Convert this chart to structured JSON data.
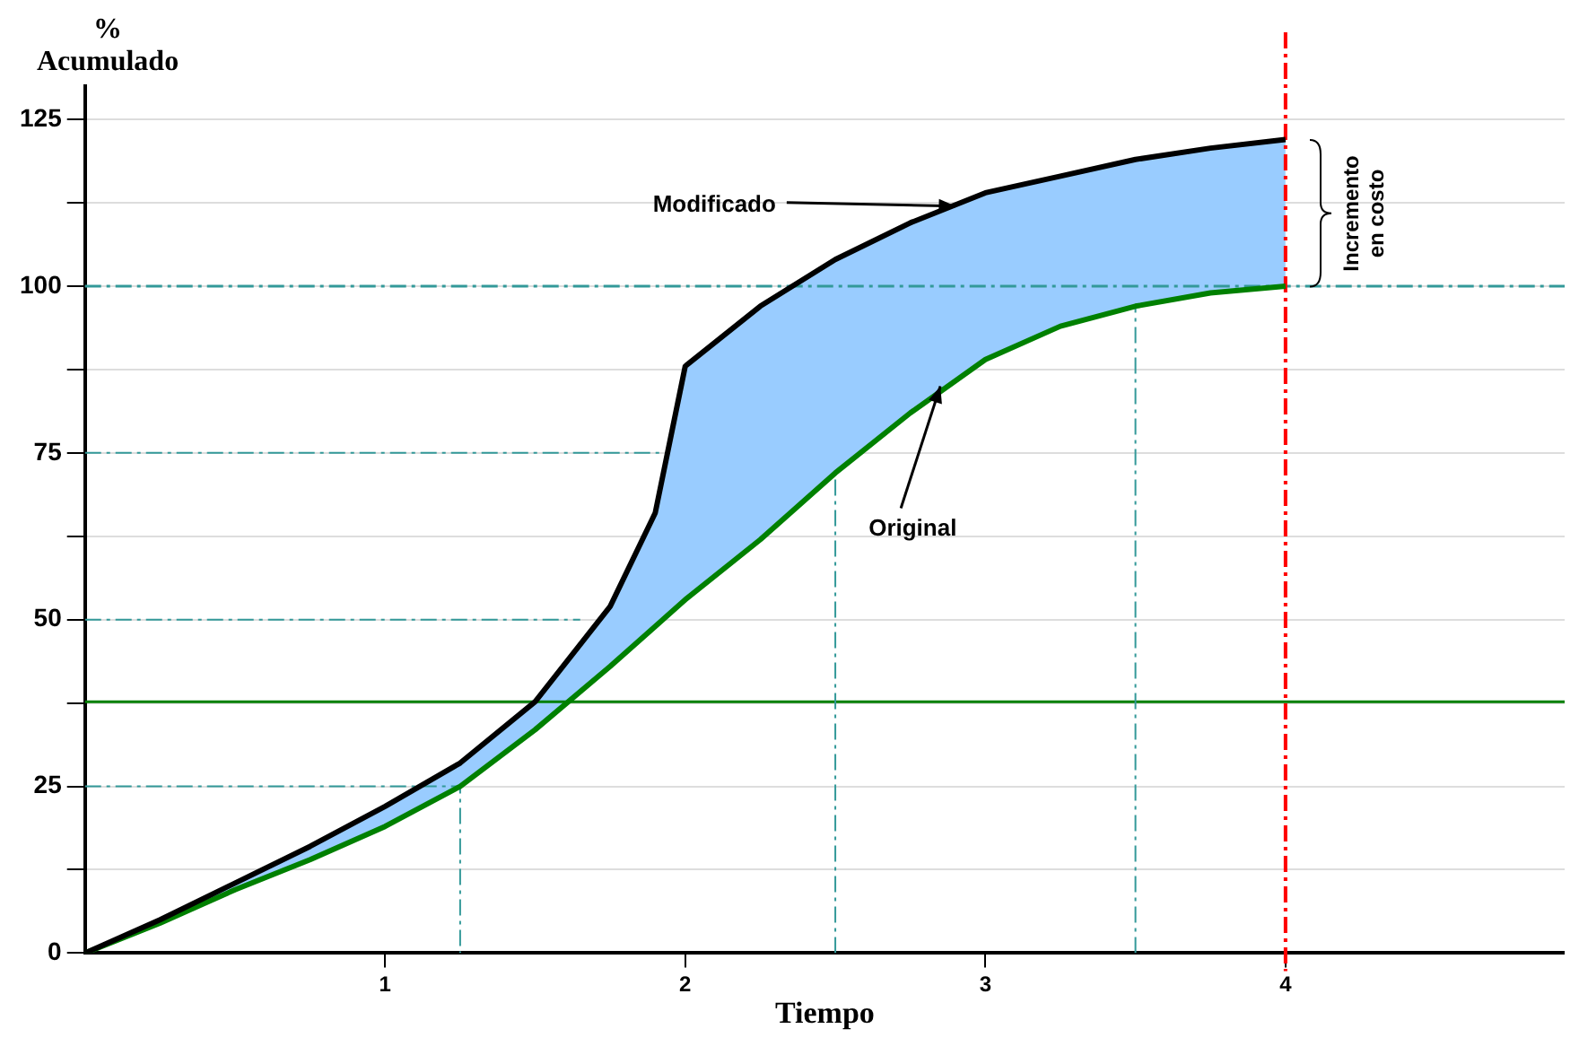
{
  "chart_data": {
    "type": "line",
    "xlabel": "Tiempo",
    "ylabel": "% Acumulado",
    "x": [
      0,
      0.25,
      0.5,
      0.75,
      1,
      1.25,
      1.5,
      1.75,
      1.9,
      2,
      2.25,
      2.5,
      2.75,
      3,
      3.25,
      3.5,
      3.75,
      4
    ],
    "series": [
      {
        "color": "#000000",
        "values": [
          0,
          5,
          10.5,
          16,
          22,
          28.5,
          37.7,
          52,
          66,
          88,
          97,
          104,
          109.5,
          114,
          116.5,
          119,
          120.7,
          122
        ]
      },
      {
        "color": "#008000",
        "values": [
          0,
          4.5,
          9.5,
          14,
          19,
          25,
          33.5,
          43,
          49,
          53,
          62,
          72,
          81,
          89,
          94,
          97,
          99,
          100
        ]
      },
      {
        "type": "line",
        "color": "#339999",
        "line_style": "dashed",
        "x": [
          0,
          1.25,
          1.25
        ],
        "values": [
          25,
          25,
          0
        ]
      },
      {
        "type": "line",
        "color": "#339999",
        "line_style": "dashed",
        "x": [
          0,
          1.65
        ],
        "values": [
          50,
          50
        ]
      },
      {
        "type": "line",
        "color": "#339999",
        "line_style": "dashed",
        "x": [
          0,
          1.93
        ],
        "values": [
          75,
          75
        ]
      },
      {
        "type": "line",
        "color": "#339999",
        "line_style": "dashed",
        "x": [
          2.5,
          2.5
        ],
        "values": [
          0,
          71
        ]
      },
      {
        "type": "line",
        "color": "#339999",
        "line_style": "dashed",
        "x": [
          3.5,
          3.5
        ],
        "values": [
          0,
          97
        ]
      }
    ],
    "xlim": [
      0,
      4.93
    ],
    "xticks": [
      1,
      2,
      3,
      4
    ],
    "ylim": [
      0,
      130
    ],
    "yticks": [
      0,
      {
        "value": 12.5,
        "label": null
      },
      25,
      {
        "value": 37.5,
        "label": null
      },
      50,
      {
        "value": 62.5,
        "label": null
      },
      75,
      {
        "value": 87.5,
        "label": null
      },
      100,
      {
        "value": 112.5,
        "label": null
      },
      125
    ],
    "grid": "y",
    "legend": false,
    "marker": "none",
    "line_style": "solid",
    "ref_lines": [
      {
        "axis": "y",
        "value": 100,
        "color": "#339999",
        "line_style": "dashed"
      },
      {
        "axis": "y",
        "value": 37.7,
        "color": "#008000",
        "line_style": "solid"
      },
      {
        "axis": "x",
        "value": 4,
        "color": "#ff0000",
        "line_style": "dashed"
      }
    ],
    "annotations": [
      {
        "text": "Modificado",
        "x": 2.9,
        "y": 112
      },
      {
        "text": "Original",
        "x": 2.85,
        "y": 85
      },
      "Incremento en costo"
    ]
  }
}
